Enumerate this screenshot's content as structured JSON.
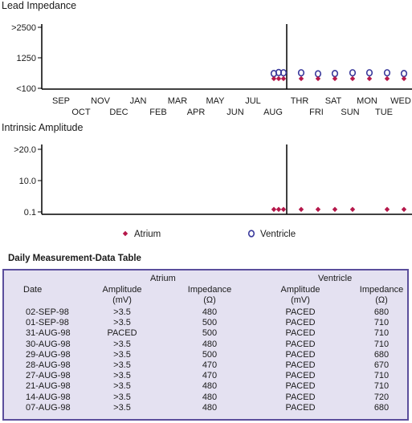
{
  "chart_data": [
    {
      "type": "scatter",
      "title": "Lead Impedance",
      "y_ticks": [
        ">2500",
        "1250",
        "<100"
      ],
      "months_row1": [
        "SEP",
        "NOV",
        "JAN",
        "MAR",
        "MAY",
        "JUL"
      ],
      "months_row2": [
        "OCT",
        "DEC",
        "FEB",
        "APR",
        "JUN",
        "AUG"
      ],
      "days_row1": [
        "THR",
        "SAT",
        "MON",
        "WED"
      ],
      "days_row2": [
        "FRI",
        "SUN",
        "TUE"
      ],
      "series": [
        {
          "name": "Atrium",
          "color": "#b5174a",
          "marker": "diamond",
          "monthly_points": [
            480,
            480,
            480
          ],
          "daily_points": [
            480,
            480,
            480,
            480,
            480,
            480,
            480
          ]
        },
        {
          "name": "Ventricle",
          "color": "#3a3a9c",
          "marker": "open-circle",
          "monthly_points": [
            680,
            720,
            710
          ],
          "daily_points": [
            710,
            670,
            680,
            710,
            710,
            710,
            680
          ]
        }
      ],
      "ylim": [
        100,
        2500
      ]
    },
    {
      "type": "scatter",
      "title": "Intrinsic Amplitude",
      "y_ticks": [
        ">20.0",
        "10.0",
        "0.1"
      ],
      "series": [
        {
          "name": "Atrium",
          "color": "#b5174a",
          "marker": "diamond",
          "monthly_points": [
            0.9,
            0.9,
            0.9
          ],
          "daily_points": [
            0.9,
            0.9,
            0.9,
            0.9,
            null,
            0.9,
            0.9
          ]
        }
      ],
      "ylim": [
        0.1,
        20
      ]
    }
  ],
  "legend": {
    "atrium": "Atrium",
    "ventricle": "Ventricle"
  },
  "table": {
    "title": "Daily Measurement-Data Table",
    "group_atrium": "Atrium",
    "group_ventricle": "Ventricle",
    "h_date": "Date",
    "h_amp": "Amplitude",
    "h_amp_unit": "(mV)",
    "h_imp": "Impedance",
    "h_imp_unit": "(Ω)",
    "rows": [
      {
        "date": "02-SEP-98",
        "a_amp": ">3.5",
        "a_imp": "480",
        "v_amp": "PACED",
        "v_imp": "680"
      },
      {
        "date": "01-SEP-98",
        "a_amp": ">3.5",
        "a_imp": "500",
        "v_amp": "PACED",
        "v_imp": "710"
      },
      {
        "date": "31-AUG-98",
        "a_amp": "PACED",
        "a_imp": "500",
        "v_amp": "PACED",
        "v_imp": "710"
      },
      {
        "date": "30-AUG-98",
        "a_amp": ">3.5",
        "a_imp": "480",
        "v_amp": "PACED",
        "v_imp": "710"
      },
      {
        "date": "29-AUG-98",
        "a_amp": ">3.5",
        "a_imp": "500",
        "v_amp": "PACED",
        "v_imp": "680"
      },
      {
        "date": "28-AUG-98",
        "a_amp": ">3.5",
        "a_imp": "470",
        "v_amp": "PACED",
        "v_imp": "670"
      },
      {
        "date": "27-AUG-98",
        "a_amp": ">3.5",
        "a_imp": "470",
        "v_amp": "PACED",
        "v_imp": "710"
      },
      {
        "date": "21-AUG-98",
        "a_amp": ">3.5",
        "a_imp": "480",
        "v_amp": "PACED",
        "v_imp": "710"
      },
      {
        "date": "14-AUG-98",
        "a_amp": ">3.5",
        "a_imp": "480",
        "v_amp": "PACED",
        "v_imp": "720"
      },
      {
        "date": "07-AUG-98",
        "a_amp": ">3.5",
        "a_imp": "480",
        "v_amp": "PACED",
        "v_imp": "680"
      }
    ]
  }
}
